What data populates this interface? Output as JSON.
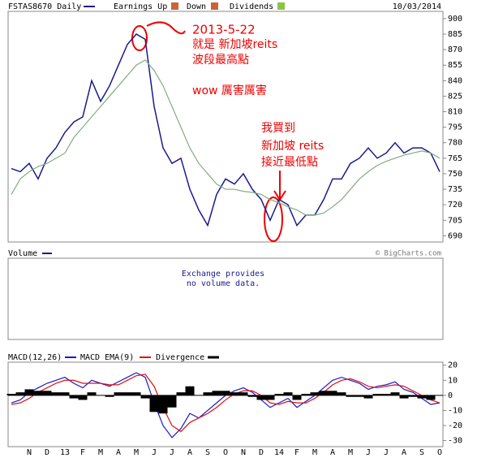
{
  "chart_data": [
    {
      "type": "line",
      "date": "10/03/2014",
      "legend_items": [
        "Earnings Up",
        "Down",
        "Dividends"
      ],
      "series": [
        {
          "name": "FSTAS8670 Daily",
          "color": "#1a1a8c",
          "values": [
            755,
            752,
            760,
            745,
            765,
            775,
            790,
            800,
            805,
            840,
            820,
            835,
            855,
            875,
            885,
            880,
            815,
            775,
            760,
            765,
            735,
            715,
            700,
            730,
            745,
            740,
            750,
            735,
            725,
            705,
            725,
            720,
            700,
            710,
            710,
            725,
            745,
            745,
            760,
            765,
            775,
            765,
            770,
            780,
            770,
            775,
            775,
            770,
            752
          ]
        },
        {
          "color": "#7fae7f",
          "values": [
            730,
            745,
            752,
            757,
            760,
            765,
            770,
            785,
            795,
            805,
            815,
            825,
            835,
            845,
            855,
            860,
            850,
            835,
            815,
            795,
            775,
            760,
            750,
            740,
            735,
            735,
            733,
            732,
            730,
            725,
            722,
            718,
            715,
            710,
            710,
            712,
            718,
            725,
            735,
            745,
            752,
            758,
            762,
            765,
            768,
            770,
            772,
            770,
            765
          ]
        }
      ],
      "ylim": [
        684,
        907
      ],
      "yticks": [
        690,
        705,
        720,
        735,
        750,
        765,
        780,
        795,
        810,
        825,
        840,
        855,
        870,
        885,
        900
      ],
      "annotations": [
        "2013-5-22",
        "就是 新加坡reits",
        "波段最高點",
        "wow 厲害厲害",
        "我買到",
        "新加坡 reits",
        "接近最低點"
      ]
    },
    {
      "type": "line",
      "categories": [
        null,
        null,
        "N",
        null,
        "D",
        null,
        "13",
        null,
        "F",
        null,
        "M",
        null,
        "A",
        null,
        "M",
        null,
        "J",
        null,
        "J",
        null,
        "A",
        null,
        "S",
        null,
        "O",
        null,
        "N",
        null,
        "D",
        null,
        "14",
        null,
        "F",
        null,
        "M",
        null,
        "A",
        null,
        "M",
        null,
        "J",
        null,
        "J",
        null,
        "A",
        null,
        "S",
        null,
        "O"
      ],
      "series": [
        {
          "name": "MACD(12,26)",
          "color": "#1a1acc",
          "values": [
            -5,
            -3,
            2,
            5,
            8,
            10,
            12,
            8,
            5,
            10,
            8,
            6,
            9,
            12,
            15,
            12,
            -5,
            -20,
            -28,
            -22,
            -12,
            -15,
            -10,
            -5,
            0,
            3,
            5,
            2,
            -3,
            -8,
            -5,
            -2,
            -8,
            -4,
            0,
            5,
            10,
            12,
            10,
            8,
            4,
            6,
            7,
            9,
            4,
            2,
            -2,
            -6,
            -5
          ]
        },
        {
          "name": "MACD EMA(9)",
          "color": "#dd1111",
          "values": [
            -6,
            -5,
            -2,
            2,
            5,
            8,
            10,
            10,
            8,
            8,
            8,
            7,
            7,
            10,
            13,
            14,
            6,
            -8,
            -20,
            -24,
            -18,
            -15,
            -12,
            -8,
            -3,
            1,
            3,
            3,
            0,
            -5,
            -6,
            -4,
            -5,
            -5,
            -2,
            2,
            7,
            10,
            11,
            9,
            6,
            5,
            6,
            7,
            6,
            3,
            0,
            -3,
            -5
          ]
        },
        {
          "name": "Divergence",
          "color": "#000000",
          "kind": "bar",
          "values": [
            1,
            2,
            4,
            3,
            3,
            2,
            2,
            -2,
            -3,
            2,
            0,
            -1,
            2,
            2,
            2,
            -2,
            -11,
            -12,
            -8,
            2,
            6,
            0,
            2,
            3,
            3,
            2,
            2,
            -1,
            -3,
            -3,
            1,
            2,
            -3,
            1,
            2,
            3,
            3,
            2,
            -1,
            -1,
            -2,
            1,
            1,
            2,
            -2,
            -1,
            -2,
            -3,
            0
          ]
        }
      ],
      "ylim": [
        -34,
        22
      ],
      "yticks": [
        20,
        10,
        0,
        -10,
        -20,
        -30
      ]
    }
  ],
  "volume_panel": {
    "label": "Volume",
    "message": [
      "Exchange provides",
      "no volume data."
    ],
    "credit": "© BigCharts.com"
  }
}
